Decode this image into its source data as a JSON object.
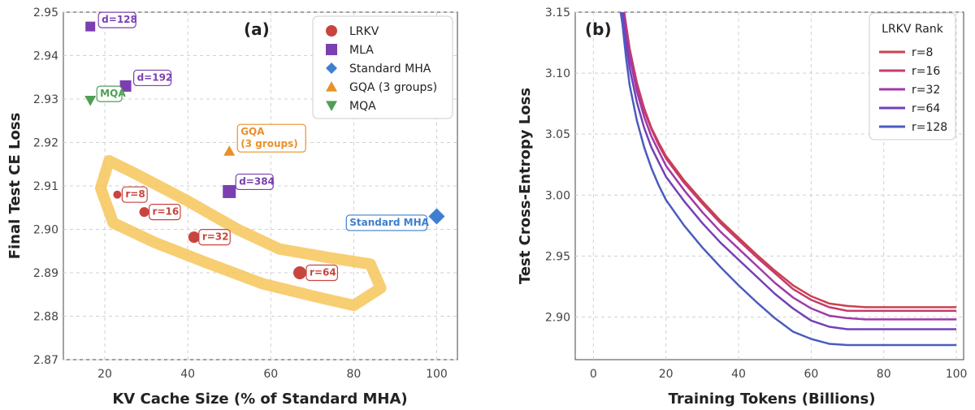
{
  "chart_data": [
    {
      "type": "scatter",
      "panel_label": "(a)",
      "xlabel": "KV Cache Size (% of Standard MHA)",
      "ylabel": "Final Test CE Loss",
      "xlim": [
        10,
        105
      ],
      "ylim": [
        2.87,
        2.95
      ],
      "x_ticks": [
        20,
        40,
        60,
        80,
        100
      ],
      "y_ticks": [
        2.87,
        2.88,
        2.89,
        2.9,
        2.91,
        2.92,
        2.93,
        2.94,
        2.95
      ],
      "grid": true,
      "legend_position": "top-right",
      "highlight_color": "#f7c55a",
      "series": [
        {
          "name": "LRKV",
          "marker": "circle",
          "color": "#c8453f",
          "points": [
            {
              "x": 23,
              "y": 2.908,
              "label": "r=8",
              "size": 5
            },
            {
              "x": 29.5,
              "y": 2.904,
              "label": "r=16",
              "size": 6
            },
            {
              "x": 41.5,
              "y": 2.8982,
              "label": "r=32",
              "size": 7
            },
            {
              "x": 67,
              "y": 2.89,
              "label": "r=64",
              "size": 8
            }
          ]
        },
        {
          "name": "MLA",
          "marker": "square",
          "color": "#7b3fb1",
          "points": [
            {
              "x": 16.5,
              "y": 2.9467,
              "label": "d=128",
              "size": 6
            },
            {
              "x": 25,
              "y": 2.933,
              "label": "d=192",
              "size": 7
            },
            {
              "x": 50,
              "y": 2.9087,
              "label": "d=384",
              "size": 8
            }
          ]
        },
        {
          "name": "Standard MHA",
          "marker": "diamond",
          "color": "#3f7fcf",
          "points": [
            {
              "x": 100,
              "y": 2.903,
              "label": "Standard MHA",
              "size": 10
            }
          ]
        },
        {
          "name": "GQA (3 groups)",
          "marker": "triangle-up",
          "color": "#e8912a",
          "points": [
            {
              "x": 50,
              "y": 2.918,
              "label": "GQA\n(3 groups)",
              "size": 7
            }
          ]
        },
        {
          "name": "MQA",
          "marker": "triangle-down",
          "color": "#4f9f55",
          "points": [
            {
              "x": 16.5,
              "y": 2.9297,
              "label": "MQA",
              "size": 7
            }
          ]
        }
      ]
    },
    {
      "type": "line",
      "panel_label": "(b)",
      "xlabel": "Training Tokens (Billions)",
      "ylabel": "Test Cross-Entropy Loss",
      "xlim": [
        -5,
        102
      ],
      "ylim": [
        2.865,
        3.15
      ],
      "x_ticks": [
        0,
        20,
        40,
        60,
        80,
        100
      ],
      "y_ticks": [
        2.9,
        2.95,
        3.0,
        3.05,
        3.1,
        3.15
      ],
      "grid": true,
      "legend_title": "LRKV Rank",
      "legend_position": "top-right",
      "x": [
        7,
        8,
        9,
        10,
        12,
        14,
        16,
        18,
        20,
        25,
        30,
        35,
        40,
        45,
        50,
        55,
        60,
        65,
        70,
        75,
        80,
        85,
        90,
        95,
        100
      ],
      "series": [
        {
          "name": "r=8",
          "color": "#c9424f",
          "values": [
            null,
            3.16,
            3.14,
            3.12,
            3.092,
            3.071,
            3.055,
            3.043,
            3.032,
            3.012,
            2.995,
            2.979,
            2.965,
            2.951,
            2.938,
            2.926,
            2.917,
            2.911,
            2.909,
            2.908,
            2.908,
            2.908,
            2.908,
            2.908,
            2.908
          ]
        },
        {
          "name": "r=16",
          "color": "#c63a6d",
          "values": [
            null,
            3.16,
            3.138,
            3.118,
            3.09,
            3.069,
            3.054,
            3.041,
            3.03,
            3.01,
            2.993,
            2.977,
            2.963,
            2.949,
            2.936,
            2.923,
            2.914,
            2.908,
            2.905,
            2.905,
            2.905,
            2.905,
            2.905,
            2.905,
            2.905
          ]
        },
        {
          "name": "r=32",
          "color": "#a03aa8",
          "values": [
            null,
            3.158,
            3.133,
            3.113,
            3.085,
            3.064,
            3.048,
            3.036,
            3.024,
            3.004,
            2.986,
            2.97,
            2.956,
            2.942,
            2.928,
            2.916,
            2.907,
            2.901,
            2.899,
            2.898,
            2.898,
            2.898,
            2.898,
            2.898,
            2.898
          ]
        },
        {
          "name": "r=64",
          "color": "#7440b8",
          "values": [
            3.16,
            3.15,
            3.125,
            3.104,
            3.076,
            3.055,
            3.039,
            3.027,
            3.015,
            2.995,
            2.977,
            2.961,
            2.947,
            2.933,
            2.919,
            2.907,
            2.897,
            2.892,
            2.89,
            2.89,
            2.89,
            2.89,
            2.89,
            2.89,
            2.89
          ]
        },
        {
          "name": "r=128",
          "color": "#4a5cc0",
          "values": [
            3.16,
            3.14,
            3.113,
            3.09,
            3.061,
            3.039,
            3.022,
            3.008,
            2.996,
            2.975,
            2.957,
            2.941,
            2.926,
            2.912,
            2.899,
            2.888,
            2.882,
            2.878,
            2.877,
            2.877,
            2.877,
            2.877,
            2.877,
            2.877,
            2.877
          ]
        }
      ]
    }
  ]
}
